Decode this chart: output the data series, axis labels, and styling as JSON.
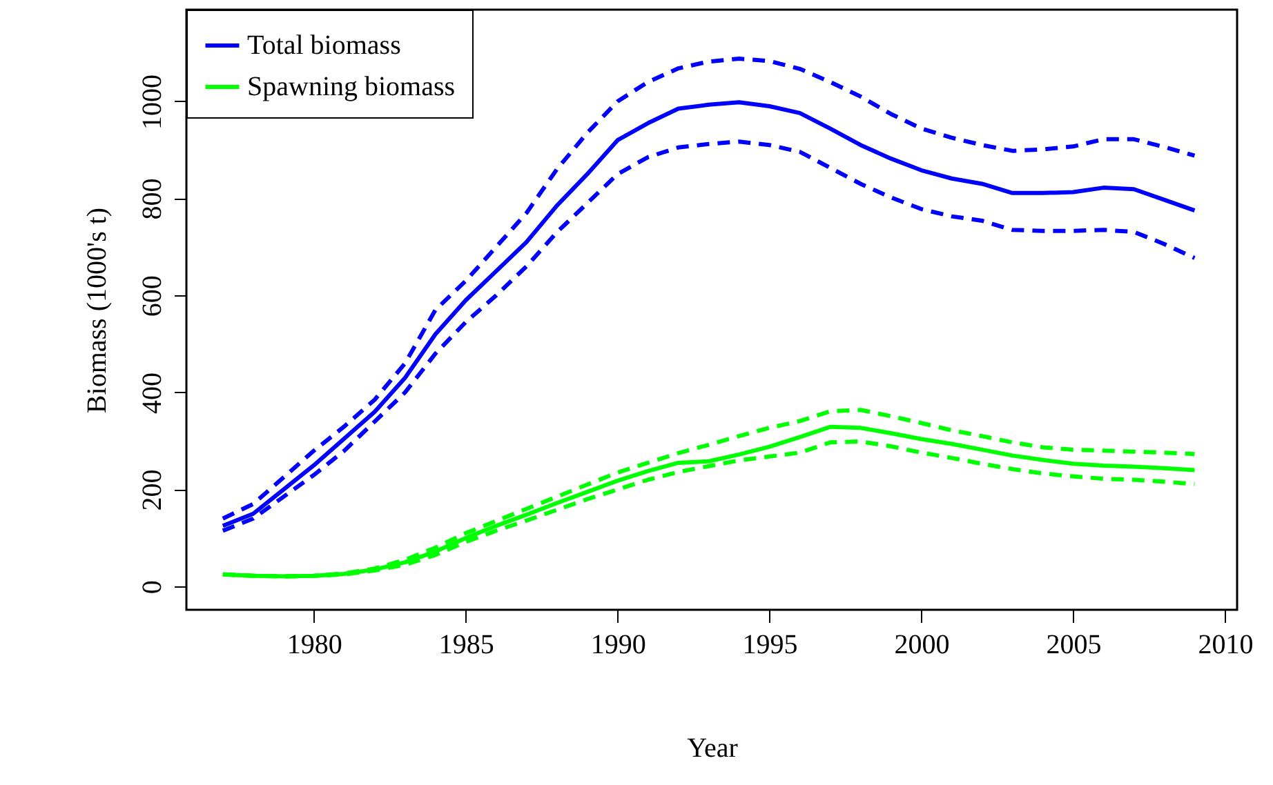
{
  "chart_data": {
    "type": "line",
    "xlabel": "Year",
    "ylabel": "Biomass (1000's t)",
    "x": [
      1977,
      1978,
      1979,
      1980,
      1981,
      1982,
      1983,
      1984,
      1985,
      1986,
      1987,
      1988,
      1989,
      1990,
      1991,
      1992,
      1993,
      1994,
      1995,
      1996,
      1997,
      1998,
      1999,
      2000,
      2001,
      2002,
      2003,
      2004,
      2005,
      2006,
      2007,
      2008,
      2009
    ],
    "xlim": [
      1975.8,
      2010.4
    ],
    "xticks": [
      1980,
      1985,
      1990,
      1995,
      2000,
      2005,
      2010
    ],
    "ylim": [
      -48,
      1189
    ],
    "yticks": [
      0,
      200,
      400,
      600,
      800,
      1000
    ],
    "grid": false,
    "legend": "top left",
    "marker": "none",
    "series": [
      {
        "name": "Total biomass",
        "color": "#0000ff",
        "line_style": "solid",
        "values": [
          125,
          150,
          200,
          250,
          305,
          360,
          430,
          520,
          590,
          650,
          710,
          785,
          850,
          920,
          955,
          985,
          993,
          998,
          990,
          976,
          944,
          910,
          882,
          858,
          841,
          830,
          811,
          811,
          813,
          822,
          819,
          797,
          775
        ]
      },
      {
        "name": "Spawning biomass",
        "color": "#00ff00",
        "line_style": "solid",
        "values": [
          25,
          22,
          21,
          22,
          26,
          35,
          50,
          72,
          100,
          125,
          148,
          172,
          195,
          218,
          238,
          255,
          258,
          272,
          288,
          308,
          329,
          327,
          316,
          304,
          294,
          282,
          270,
          261,
          253,
          249,
          247,
          244,
          240
        ]
      },
      {
        "color": "#0000ff",
        "line_style": "dashed",
        "values": [
          140,
          170,
          225,
          280,
          330,
          385,
          460,
          570,
          630,
          700,
          770,
          860,
          935,
          1000,
          1040,
          1068,
          1082,
          1088,
          1083,
          1067,
          1040,
          1010,
          974,
          944,
          925,
          910,
          898,
          901,
          907,
          922,
          922,
          906,
          888
        ]
      },
      {
        "color": "#0000ff",
        "line_style": "dashed",
        "values": [
          115,
          140,
          185,
          230,
          280,
          340,
          400,
          480,
          545,
          600,
          660,
          730,
          790,
          850,
          885,
          905,
          912,
          917,
          910,
          896,
          863,
          830,
          802,
          778,
          763,
          754,
          735,
          733,
          733,
          735,
          731,
          706,
          677
        ]
      },
      {
        "color": "#00ff00",
        "line_style": "dashed",
        "values": [
          25,
          22,
          21,
          22,
          27,
          37,
          55,
          80,
          110,
          135,
          160,
          185,
          210,
          235,
          255,
          275,
          292,
          310,
          327,
          341,
          361,
          364,
          351,
          337,
          322,
          310,
          297,
          287,
          282,
          280,
          278,
          276,
          273
        ]
      },
      {
        "color": "#00ff00",
        "line_style": "dashed",
        "values": [
          25,
          22,
          21,
          22,
          25,
          33,
          45,
          65,
          92,
          115,
          136,
          158,
          180,
          200,
          220,
          236,
          248,
          260,
          268,
          276,
          297,
          299,
          289,
          276,
          265,
          253,
          242,
          233,
          227,
          222,
          220,
          216,
          211
        ]
      }
    ]
  }
}
